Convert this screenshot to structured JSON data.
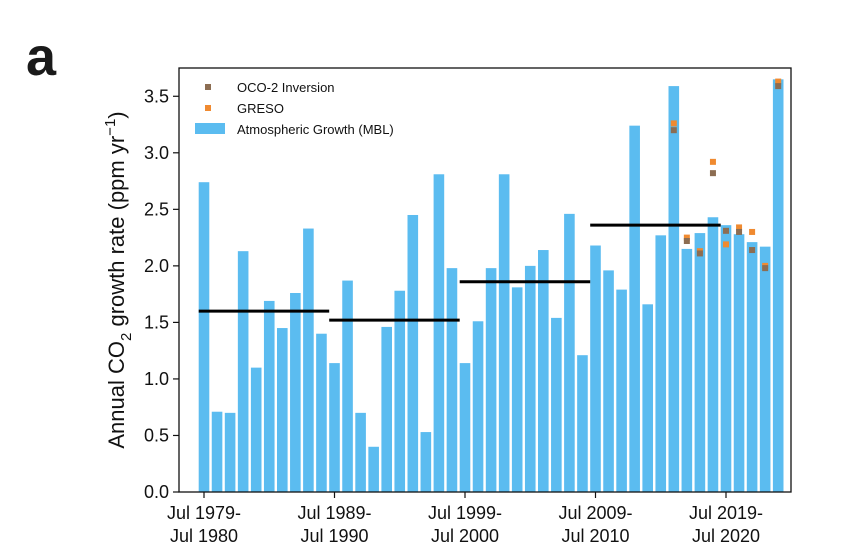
{
  "panel_letter": "a",
  "chart_data": {
    "type": "bar",
    "ylabel_main": "Annual CO",
    "ylabel_sub": "2",
    "ylabel_rest": " growth rate (ppm yr",
    "ylabel_sup": "−1",
    "ylabel_end": ")",
    "ylim": [
      0,
      3.75
    ],
    "yticks": [
      "0.0",
      "0.5",
      "1.0",
      "1.5",
      "2.0",
      "2.5",
      "3.0",
      "3.5"
    ],
    "ytick_values": [
      0,
      0.5,
      1.0,
      1.5,
      2.0,
      2.5,
      3.0,
      3.5
    ],
    "xtick_index": [
      0,
      10,
      20,
      30,
      40
    ],
    "xticks": [
      {
        "line1": "Jul 1979-",
        "line2": "Jul 1980"
      },
      {
        "line1": "Jul 1989-",
        "line2": "Jul 1990"
      },
      {
        "line1": "Jul 1999-",
        "line2": "Jul 2000"
      },
      {
        "line1": "Jul 2009-",
        "line2": "Jul 2010"
      },
      {
        "line1": "Jul 2019-",
        "line2": "Jul 2020"
      }
    ],
    "legend": {
      "placement": "top-left",
      "entries": [
        {
          "label": "OCO-2 Inversion",
          "color": "#8c6d52",
          "kind": "square"
        },
        {
          "label": "GRESO",
          "color": "#f08a30",
          "kind": "square"
        },
        {
          "label": "Atmospheric Growth (MBL)",
          "color": "#5bbcf0",
          "kind": "bar"
        }
      ]
    },
    "bar_color": "#5bbcf0",
    "series": [
      {
        "name": "Atmospheric Growth (MBL)",
        "values": [
          2.74,
          0.71,
          0.7,
          2.13,
          1.1,
          1.69,
          1.45,
          1.76,
          2.33,
          1.4,
          1.14,
          1.87,
          0.7,
          0.4,
          1.46,
          1.78,
          2.45,
          0.53,
          2.81,
          1.98,
          1.14,
          1.51,
          1.98,
          2.81,
          1.81,
          2.0,
          2.14,
          1.54,
          2.46,
          1.21,
          2.18,
          1.96,
          1.79,
          3.24,
          1.66,
          2.27,
          3.59,
          2.15,
          2.29,
          2.43,
          2.36,
          2.28,
          2.21,
          2.17,
          3.65
        ]
      },
      {
        "name": "OCO-2 Inversion",
        "points": [
          {
            "i": 36,
            "v": 3.2
          },
          {
            "i": 37,
            "v": 2.22
          },
          {
            "i": 38,
            "v": 2.11
          },
          {
            "i": 39,
            "v": 2.82
          },
          {
            "i": 40,
            "v": 2.31
          },
          {
            "i": 41,
            "v": 2.3
          },
          {
            "i": 42,
            "v": 2.14
          },
          {
            "i": 43,
            "v": 1.98
          },
          {
            "i": 44,
            "v": 3.59
          }
        ],
        "color": "#8c6d52"
      },
      {
        "name": "GRESO",
        "points": [
          {
            "i": 36,
            "v": 3.26
          },
          {
            "i": 37,
            "v": 2.25
          },
          {
            "i": 38,
            "v": 2.13
          },
          {
            "i": 39,
            "v": 2.92
          },
          {
            "i": 40,
            "v": 2.19
          },
          {
            "i": 41,
            "v": 2.34
          },
          {
            "i": 42,
            "v": 2.3
          },
          {
            "i": 43,
            "v": 2.0
          },
          {
            "i": 44,
            "v": 3.63
          }
        ],
        "color": "#f08a30"
      },
      {
        "name": "Decadal mean",
        "segments": [
          {
            "start": 0,
            "end": 10,
            "v": 1.6
          },
          {
            "start": 10,
            "end": 20,
            "v": 1.52
          },
          {
            "start": 20,
            "end": 30,
            "v": 1.86
          },
          {
            "start": 30,
            "end": 40,
            "v": 2.36
          }
        ],
        "color": "#000000"
      }
    ]
  }
}
